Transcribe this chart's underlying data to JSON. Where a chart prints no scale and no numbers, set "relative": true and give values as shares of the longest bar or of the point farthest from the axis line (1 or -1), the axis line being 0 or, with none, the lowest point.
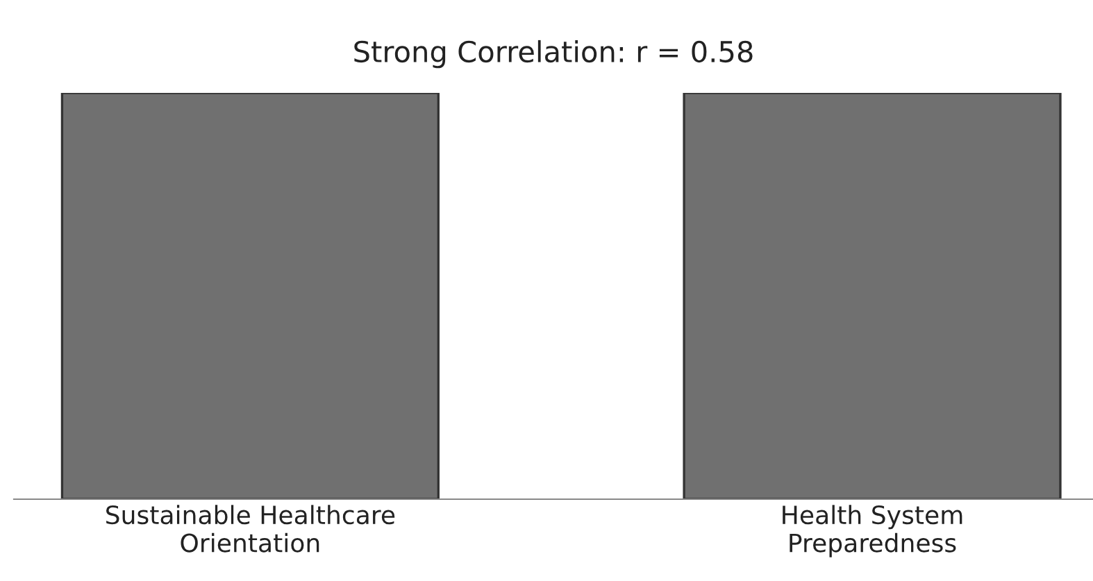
{
  "chart_data": {
    "type": "bar",
    "title": "Strong Correlation: r = 0.58",
    "categories": [
      "Sustainable Healthcare\nOrientation",
      "Health System\nPreparedness"
    ],
    "values": [
      1,
      1
    ],
    "color": "#707070",
    "relative": true
  }
}
